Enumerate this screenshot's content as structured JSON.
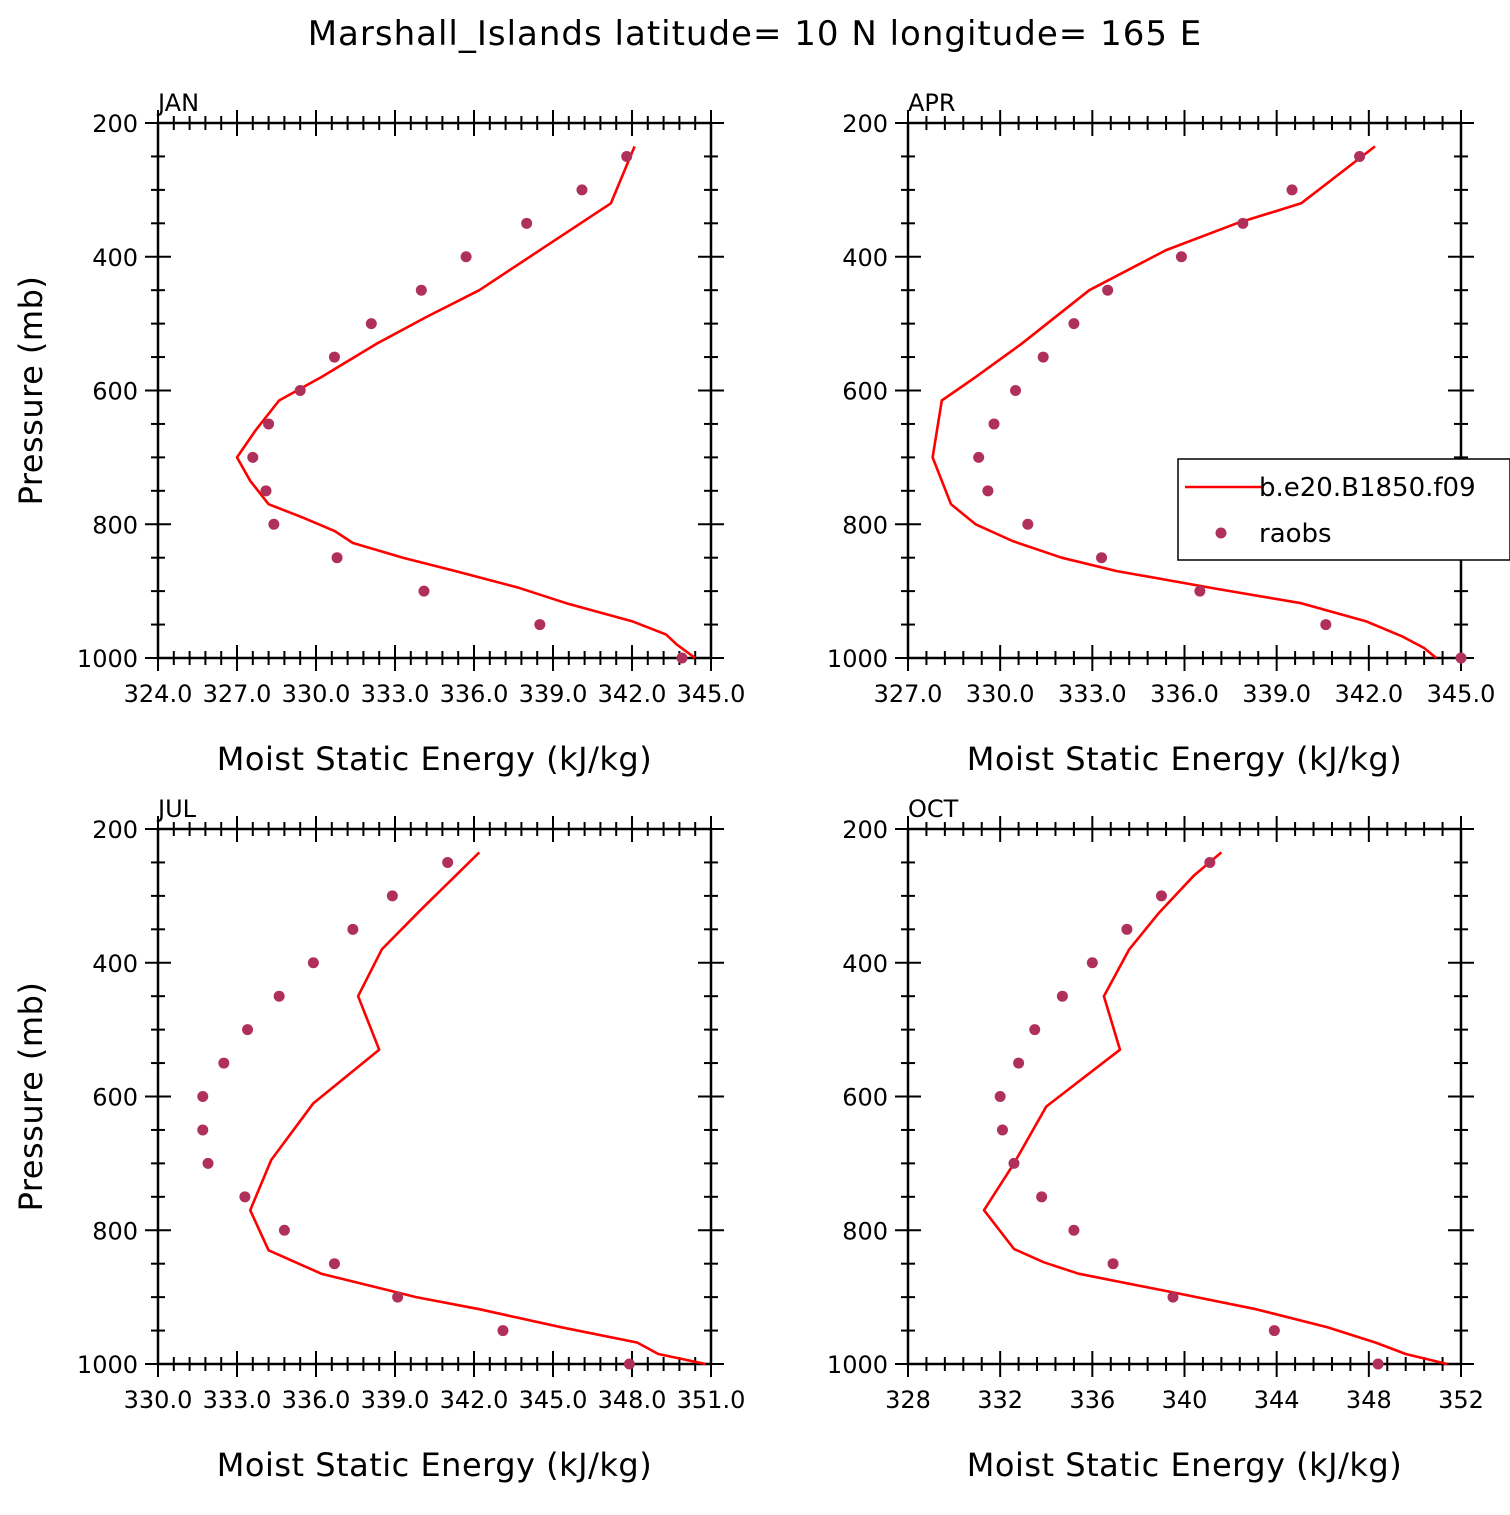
{
  "title": "Marshall_Islands  latitude= 10 N longitude= 165 E",
  "colors": {
    "model_line": "#ff0000",
    "obs_marker": "#b0305c",
    "axis": "#000000"
  },
  "legend": {
    "entries": [
      {
        "label": "b.e20.B1850.f09",
        "symbol": "line"
      },
      {
        "label": "raobs",
        "symbol": "dot"
      }
    ]
  },
  "chart_data": [
    {
      "type": "line",
      "panel": "JAN",
      "xlabel": "Moist Static Energy (kJ/kg)",
      "ylabel": "Pressure (mb)",
      "xlim": [
        324,
        345
      ],
      "ylim": [
        1000,
        200
      ],
      "y_inverted": true,
      "x_ticks": [
        324,
        327,
        330,
        333,
        336,
        339,
        342,
        345
      ],
      "x_tick_labels": [
        "324.0",
        "327.0",
        "330.0",
        "333.0",
        "336.0",
        "339.0",
        "342.0",
        "345.0"
      ],
      "y_ticks": [
        200,
        400,
        600,
        800,
        1000
      ],
      "y_tick_labels": [
        "200",
        "400",
        "600",
        "800",
        "1000"
      ],
      "series": [
        {
          "name": "b.e20.B1850.f09",
          "style": "line",
          "x": [
            344.4,
            343.7,
            343.3,
            342.0,
            339.5,
            337.7,
            335.3,
            333.3,
            331.4,
            330.7,
            329.5,
            328.2,
            327.5,
            327.0,
            327.7,
            328.6,
            330.2,
            332.3,
            334.2,
            336.2,
            338.7,
            341.2,
            342.1
          ],
          "y": [
            1000,
            980,
            965,
            945,
            918,
            895,
            870,
            850,
            828,
            810,
            790,
            770,
            735,
            700,
            660,
            615,
            580,
            530,
            490,
            450,
            385,
            320,
            235
          ]
        },
        {
          "name": "raobs",
          "style": "markers",
          "x": [
            343.9,
            338.5,
            334.1,
            330.8,
            328.4,
            328.1,
            327.6,
            328.2,
            329.4,
            330.7,
            332.1,
            334.0,
            335.7,
            338.0,
            340.1,
            341.8
          ],
          "y": [
            1000,
            950,
            900,
            850,
            800,
            750,
            700,
            650,
            600,
            550,
            500,
            450,
            400,
            350,
            300,
            250
          ]
        }
      ]
    },
    {
      "type": "line",
      "panel": "APR",
      "xlabel": "Moist Static Energy (kJ/kg)",
      "ylabel": "",
      "xlim": [
        327,
        345
      ],
      "ylim": [
        1000,
        200
      ],
      "y_inverted": true,
      "x_ticks": [
        327,
        330,
        333,
        336,
        339,
        342,
        345
      ],
      "x_tick_labels": [
        "327.0",
        "330.0",
        "333.0",
        "336.0",
        "339.0",
        "342.0",
        "345.0"
      ],
      "y_ticks": [
        200,
        400,
        600,
        800,
        1000
      ],
      "y_tick_labels": [
        "200",
        "400",
        "600",
        "800",
        "1000"
      ],
      "series": [
        {
          "name": "b.e20.B1850.f09",
          "style": "line",
          "x": [
            344.2,
            343.8,
            343.1,
            341.9,
            339.8,
            337.1,
            333.8,
            332.0,
            330.4,
            329.2,
            328.8,
            328.4,
            327.8,
            328.1,
            329.2,
            330.7,
            332.9,
            335.4,
            337.7,
            339.8,
            342.2
          ],
          "y": [
            1000,
            985,
            968,
            945,
            918,
            897,
            870,
            850,
            825,
            800,
            785,
            770,
            700,
            615,
            580,
            530,
            450,
            390,
            350,
            320,
            235
          ]
        },
        {
          "name": "raobs",
          "style": "markers",
          "x": [
            345.0,
            340.6,
            336.5,
            333.3,
            330.9,
            329.6,
            329.3,
            329.8,
            330.5,
            331.4,
            332.4,
            333.5,
            335.9,
            337.9,
            339.5,
            341.7
          ],
          "y": [
            1000,
            950,
            900,
            850,
            800,
            750,
            700,
            650,
            600,
            550,
            500,
            450,
            400,
            350,
            300,
            250
          ]
        }
      ]
    },
    {
      "type": "line",
      "panel": "JUL",
      "xlabel": "Moist Static Energy (kJ/kg)",
      "ylabel": "Pressure (mb)",
      "xlim": [
        330,
        351
      ],
      "ylim": [
        1000,
        200
      ],
      "y_inverted": true,
      "x_ticks": [
        330,
        333,
        336,
        339,
        342,
        345,
        348,
        351
      ],
      "x_tick_labels": [
        "330.0",
        "333.0",
        "336.0",
        "339.0",
        "342.0",
        "345.0",
        "348.0",
        "351.0"
      ],
      "y_ticks": [
        200,
        400,
        600,
        800,
        1000
      ],
      "y_tick_labels": [
        "200",
        "400",
        "600",
        "800",
        "1000"
      ],
      "series": [
        {
          "name": "b.e20.B1850.f09",
          "style": "line",
          "x": [
            350.8,
            349.0,
            348.2,
            345.3,
            342.2,
            339.8,
            336.2,
            334.2,
            333.5,
            334.3,
            335.9,
            338.4,
            337.6,
            338.5,
            340.0,
            342.2
          ],
          "y": [
            1000,
            985,
            968,
            945,
            918,
            900,
            865,
            830,
            770,
            695,
            610,
            530,
            450,
            380,
            320,
            235
          ]
        },
        {
          "name": "raobs",
          "style": "markers",
          "x": [
            347.9,
            343.1,
            339.1,
            336.7,
            334.8,
            333.3,
            331.9,
            331.7,
            331.7,
            332.5,
            333.4,
            334.6,
            335.9,
            337.4,
            338.9,
            341.0
          ],
          "y": [
            1000,
            950,
            900,
            850,
            800,
            750,
            700,
            650,
            600,
            550,
            500,
            450,
            400,
            350,
            300,
            250
          ]
        }
      ]
    },
    {
      "type": "line",
      "panel": "OCT",
      "xlabel": "Moist Static Energy (kJ/kg)",
      "ylabel": "",
      "xlim": [
        328,
        352
      ],
      "ylim": [
        1000,
        200
      ],
      "y_inverted": true,
      "x_ticks": [
        328,
        332,
        336,
        340,
        344,
        348,
        352
      ],
      "x_tick_labels": [
        "328",
        "332",
        "336",
        "340",
        "344",
        "348",
        "352"
      ],
      "y_ticks": [
        200,
        400,
        600,
        800,
        1000
      ],
      "y_tick_labels": [
        "200",
        "400",
        "600",
        "800",
        "1000"
      ],
      "series": [
        {
          "name": "b.e20.B1850.f09",
          "style": "line",
          "x": [
            351.4,
            349.6,
            348.3,
            346.2,
            343.1,
            339.5,
            335.4,
            333.9,
            332.6,
            331.3,
            332.6,
            334.0,
            337.2,
            336.5,
            337.6,
            338.9,
            340.4,
            341.6
          ],
          "y": [
            1000,
            985,
            968,
            945,
            918,
            893,
            865,
            848,
            828,
            770,
            700,
            615,
            530,
            450,
            380,
            325,
            270,
            235
          ]
        },
        {
          "name": "raobs",
          "style": "markers",
          "x": [
            348.4,
            343.9,
            339.5,
            336.9,
            335.2,
            333.8,
            332.6,
            332.1,
            332.0,
            332.8,
            333.5,
            334.7,
            336.0,
            337.5,
            339.0,
            341.1
          ],
          "y": [
            1000,
            950,
            900,
            850,
            800,
            750,
            700,
            650,
            600,
            550,
            500,
            450,
            400,
            350,
            300,
            250
          ]
        }
      ]
    }
  ]
}
